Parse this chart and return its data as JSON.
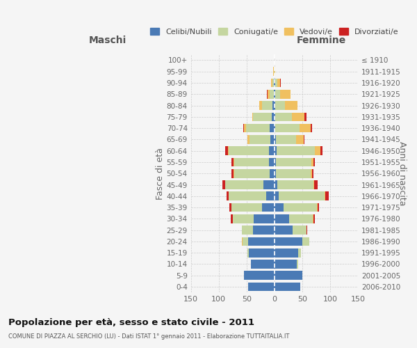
{
  "age_groups": [
    "0-4",
    "5-9",
    "10-14",
    "15-19",
    "20-24",
    "25-29",
    "30-34",
    "35-39",
    "40-44",
    "45-49",
    "50-54",
    "55-59",
    "60-64",
    "65-69",
    "70-74",
    "75-79",
    "80-84",
    "85-89",
    "90-94",
    "95-99",
    "100+"
  ],
  "birth_years": [
    "2006-2010",
    "2001-2005",
    "1996-2000",
    "1991-1995",
    "1986-1990",
    "1981-1985",
    "1976-1980",
    "1971-1975",
    "1966-1970",
    "1961-1965",
    "1956-1960",
    "1951-1955",
    "1946-1950",
    "1941-1945",
    "1936-1940",
    "1931-1935",
    "1926-1930",
    "1921-1925",
    "1916-1920",
    "1911-1915",
    "≤ 1910"
  ],
  "colors": {
    "celibe": "#4a7ab5",
    "coniugato": "#c5d6a0",
    "vedovo": "#f0c060",
    "divorziato": "#cc2222"
  },
  "maschi": {
    "celibe": [
      47,
      55,
      42,
      46,
      47,
      38,
      37,
      22,
      15,
      20,
      9,
      10,
      10,
      7,
      8,
      5,
      3,
      1,
      1,
      0,
      0
    ],
    "coniugato": [
      0,
      0,
      0,
      3,
      10,
      20,
      38,
      55,
      67,
      68,
      63,
      62,
      72,
      38,
      43,
      33,
      19,
      8,
      3,
      1,
      0
    ],
    "vedovo": [
      0,
      0,
      0,
      0,
      1,
      0,
      0,
      0,
      0,
      1,
      1,
      1,
      2,
      3,
      4,
      2,
      5,
      3,
      2,
      1,
      0
    ],
    "divorziato": [
      0,
      0,
      0,
      0,
      1,
      0,
      3,
      4,
      4,
      4,
      4,
      4,
      4,
      0,
      1,
      0,
      0,
      2,
      0,
      0,
      0
    ]
  },
  "femmine": {
    "nubile": [
      46,
      50,
      40,
      43,
      50,
      33,
      27,
      16,
      8,
      5,
      3,
      3,
      4,
      3,
      2,
      2,
      2,
      1,
      1,
      0,
      0
    ],
    "coniugata": [
      0,
      0,
      2,
      4,
      12,
      24,
      42,
      60,
      82,
      65,
      62,
      63,
      68,
      36,
      43,
      30,
      17,
      9,
      4,
      0,
      0
    ],
    "vedova": [
      0,
      0,
      0,
      0,
      0,
      0,
      1,
      1,
      1,
      1,
      2,
      4,
      10,
      14,
      20,
      22,
      22,
      19,
      5,
      1,
      0
    ],
    "divorziata": [
      0,
      0,
      0,
      0,
      1,
      2,
      3,
      3,
      7,
      7,
      3,
      3,
      4,
      1,
      2,
      3,
      0,
      0,
      1,
      0,
      0
    ]
  },
  "title": "Popolazione per età, sesso e stato civile - 2011",
  "subtitle": "COMUNE DI PIAZZA AL SERCHIO (LU) - Dati ISTAT 1° gennaio 2011 - Elaborazione TUTTAITALIA.IT",
  "xlabel_left": "Maschi",
  "xlabel_right": "Femmine",
  "ylabel_left": "Fasce di età",
  "ylabel_right": "Anni di nascita",
  "xlim": 150,
  "bg_color": "#f5f5f5",
  "grid_color": "#cccccc",
  "legend_labels": [
    "Celibi/Nubili",
    "Coniugati/e",
    "Vedovi/e",
    "Divorziati/e"
  ]
}
